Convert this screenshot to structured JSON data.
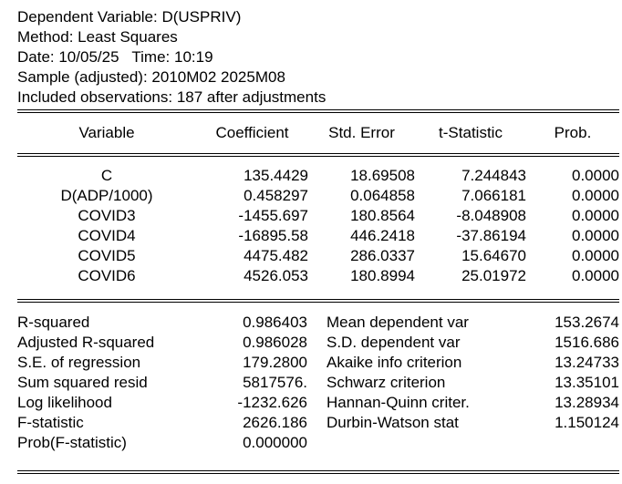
{
  "colors": {
    "background": "#ffffff",
    "text": "#000000",
    "rule": "#000000"
  },
  "summary": {
    "lines": [
      "Dependent Variable: D(USPRIV)",
      "Method: Least Squares",
      "Date: 10/05/25   Time: 10:19",
      "Sample (adjusted): 2010M02 2025M08",
      "Included observations: 187 after adjustments"
    ]
  },
  "coef_table": {
    "headers": {
      "variable": "Variable",
      "coefficient": "Coefficient",
      "std_error": "Std. Error",
      "t_statistic": "t-Statistic",
      "prob": "Prob."
    },
    "rows": [
      {
        "variable": "C",
        "coefficient": "135.4429",
        "std_error": "18.69508",
        "t_statistic": "7.244843",
        "prob": "0.0000"
      },
      {
        "variable": "D(ADP/1000)",
        "coefficient": "0.458297",
        "std_error": "0.064858",
        "t_statistic": "7.066181",
        "prob": "0.0000"
      },
      {
        "variable": "COVID3",
        "coefficient": "-1455.697",
        "std_error": "180.8564",
        "t_statistic": "-8.048908",
        "prob": "0.0000"
      },
      {
        "variable": "COVID4",
        "coefficient": "-16895.58",
        "std_error": "446.2418",
        "t_statistic": "-37.86194",
        "prob": "0.0000"
      },
      {
        "variable": "COVID5",
        "coefficient": "4475.482",
        "std_error": "286.0337",
        "t_statistic": "15.64670",
        "prob": "0.0000"
      },
      {
        "variable": "COVID6",
        "coefficient": "4526.053",
        "std_error": "180.8994",
        "t_statistic": "25.01972",
        "prob": "0.0000"
      }
    ]
  },
  "stats_table": {
    "rows": [
      {
        "left_label": "R-squared",
        "left_value": "0.986403",
        "right_label": "Mean dependent var",
        "right_value": "153.2674"
      },
      {
        "left_label": "Adjusted R-squared",
        "left_value": "0.986028",
        "right_label": "S.D. dependent var",
        "right_value": "1516.686"
      },
      {
        "left_label": "S.E. of regression",
        "left_value": "179.2800",
        "right_label": "Akaike info criterion",
        "right_value": "13.24733"
      },
      {
        "left_label": "Sum squared resid",
        "left_value": "5817576.",
        "right_label": "Schwarz criterion",
        "right_value": "13.35101"
      },
      {
        "left_label": "Log likelihood",
        "left_value": "-1232.626",
        "right_label": "Hannan-Quinn criter.",
        "right_value": "13.28934"
      },
      {
        "left_label": "F-statistic",
        "left_value": "2626.186",
        "right_label": "Durbin-Watson stat",
        "right_value": "1.150124"
      },
      {
        "left_label": "Prob(F-statistic)",
        "left_value": "0.000000",
        "right_label": "",
        "right_value": ""
      }
    ]
  }
}
